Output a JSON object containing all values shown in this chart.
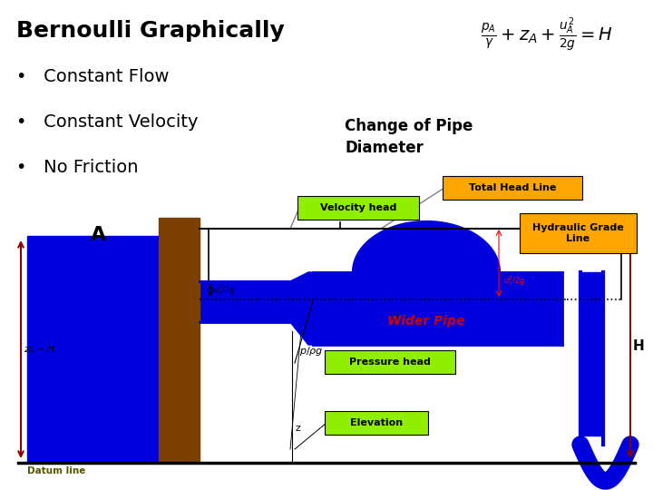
{
  "title": "Bernoulli Graphically",
  "bullets": [
    "Constant Flow",
    "Constant Velocity",
    "No Friction"
  ],
  "subtitle": "Change of Pipe\nDiameter",
  "bg_color": "#ffffff",
  "blue": "#0000dd",
  "brown": "#7B3F00",
  "orange": "#FFA500",
  "green": "#90EE00",
  "red_text": "#cc0000",
  "dark_red": "#8B0000"
}
